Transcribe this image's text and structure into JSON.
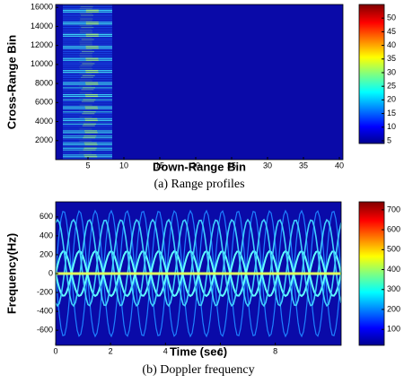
{
  "chart_data": [
    {
      "type": "heatmap",
      "xlabel": "Down-Range Bin",
      "ylabel": "Cross-Range Bin",
      "caption": "(a)  Range profiles",
      "xlim": [
        0.5,
        40.5
      ],
      "xticks": [
        5,
        10,
        15,
        20,
        25,
        30,
        35,
        40
      ],
      "ylim": [
        0,
        16300
      ],
      "yticks": [
        2000,
        4000,
        6000,
        8000,
        10000,
        12000,
        14000,
        16000
      ],
      "colorbar": {
        "lim": [
          4,
          55
        ],
        "ticks": [
          5,
          10,
          15,
          20,
          25,
          30,
          35,
          40,
          45,
          50
        ]
      }
    },
    {
      "type": "heatmap",
      "xlabel": "Time (sec)",
      "ylabel": "Frequency(Hz)",
      "caption": "(b)  Doppler frequency",
      "xlim": [
        0,
        10.4
      ],
      "xticks": [
        0,
        2,
        4,
        6,
        8
      ],
      "ylim": [
        -760,
        760
      ],
      "yticks": [
        -600,
        -400,
        -200,
        0,
        200,
        400,
        600
      ],
      "colorbar": {
        "lim": [
          20,
          740
        ],
        "ticks": [
          100,
          200,
          300,
          400,
          500,
          600,
          700
        ]
      }
    }
  ]
}
